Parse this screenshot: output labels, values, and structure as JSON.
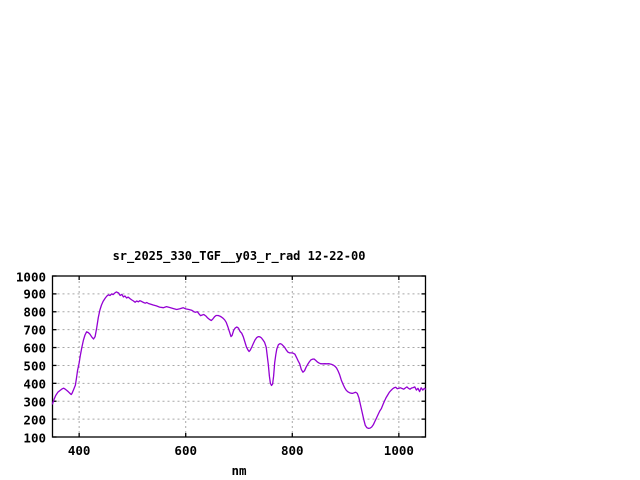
{
  "chart": {
    "title": "sr_2025_330_TGF__y03_r_rad 12-22-00",
    "xlabel": "nm"
  },
  "chart_data": {
    "type": "line",
    "title": "sr_2025_330_TGF__y03_r_rad 12-22-00",
    "xlabel": "nm",
    "ylabel": "",
    "xlim": [
      350,
      1050
    ],
    "ylim": [
      100,
      1000
    ],
    "xticks": [
      400,
      600,
      800,
      1000
    ],
    "yticks": [
      100,
      200,
      300,
      400,
      500,
      600,
      700,
      800,
      900,
      1000
    ],
    "grid": true,
    "legend": "none",
    "line_color": "#9400d3",
    "grid_color": "#a8a8a8",
    "frame_color": "#000000",
    "series": [
      {
        "points": [
          [
            350,
            285
          ],
          [
            353,
            311
          ],
          [
            356,
            332
          ],
          [
            360,
            350
          ],
          [
            364,
            360
          ],
          [
            368,
            369
          ],
          [
            371,
            373
          ],
          [
            374,
            367
          ],
          [
            377,
            360
          ],
          [
            380,
            352
          ],
          [
            383,
            343
          ],
          [
            385,
            337
          ],
          [
            387,
            346
          ],
          [
            390,
            368
          ],
          [
            393,
            390
          ],
          [
            395,
            430
          ],
          [
            397,
            470
          ],
          [
            400,
            512
          ],
          [
            402,
            552
          ],
          [
            405,
            600
          ],
          [
            408,
            641
          ],
          [
            411,
            670
          ],
          [
            414,
            688
          ],
          [
            417,
            684
          ],
          [
            420,
            676
          ],
          [
            424,
            658
          ],
          [
            427,
            648
          ],
          [
            430,
            661
          ],
          [
            433,
            710
          ],
          [
            436,
            768
          ],
          [
            439,
            810
          ],
          [
            442,
            838
          ],
          [
            445,
            858
          ],
          [
            449,
            877
          ],
          [
            452,
            888
          ],
          [
            455,
            895
          ],
          [
            458,
            891
          ],
          [
            461,
            900
          ],
          [
            464,
            896
          ],
          [
            467,
            905
          ],
          [
            470,
            911
          ],
          [
            474,
            905
          ],
          [
            477,
            891
          ],
          [
            480,
            897
          ],
          [
            483,
            883
          ],
          [
            486,
            888
          ],
          [
            489,
            877
          ],
          [
            492,
            882
          ],
          [
            496,
            872
          ],
          [
            499,
            866
          ],
          [
            502,
            860
          ],
          [
            505,
            853
          ],
          [
            508,
            860
          ],
          [
            511,
            856
          ],
          [
            514,
            862
          ],
          [
            517,
            858
          ],
          [
            521,
            852
          ],
          [
            524,
            848
          ],
          [
            527,
            852
          ],
          [
            530,
            846
          ],
          [
            534,
            843
          ],
          [
            539,
            838
          ],
          [
            545,
            833
          ],
          [
            551,
            826
          ],
          [
            558,
            823
          ],
          [
            564,
            829
          ],
          [
            570,
            824
          ],
          [
            577,
            818
          ],
          [
            583,
            813
          ],
          [
            589,
            817
          ],
          [
            595,
            823
          ],
          [
            600,
            816
          ],
          [
            606,
            813
          ],
          [
            611,
            809
          ],
          [
            615,
            801
          ],
          [
            618,
            797
          ],
          [
            622,
            800
          ],
          [
            625,
            788
          ],
          [
            628,
            778
          ],
          [
            631,
            782
          ],
          [
            634,
            785
          ],
          [
            638,
            776
          ],
          [
            641,
            766
          ],
          [
            645,
            756
          ],
          [
            648,
            751
          ],
          [
            651,
            760
          ],
          [
            654,
            772
          ],
          [
            657,
            779
          ],
          [
            661,
            779
          ],
          [
            664,
            776
          ],
          [
            667,
            771
          ],
          [
            670,
            764
          ],
          [
            673,
            755
          ],
          [
            676,
            741
          ],
          [
            679,
            717
          ],
          [
            682,
            689
          ],
          [
            685,
            661
          ],
          [
            687,
            668
          ],
          [
            690,
            697
          ],
          [
            693,
            710
          ],
          [
            696,
            715
          ],
          [
            699,
            708
          ],
          [
            702,
            690
          ],
          [
            705,
            680
          ],
          [
            708,
            660
          ],
          [
            711,
            631
          ],
          [
            714,
            602
          ],
          [
            717,
            585
          ],
          [
            719,
            578
          ],
          [
            721,
            585
          ],
          [
            724,
            603
          ],
          [
            727,
            623
          ],
          [
            730,
            642
          ],
          [
            733,
            655
          ],
          [
            736,
            661
          ],
          [
            739,
            660
          ],
          [
            742,
            654
          ],
          [
            745,
            642
          ],
          [
            748,
            629
          ],
          [
            751,
            602
          ],
          [
            753,
            556
          ],
          [
            755,
            506
          ],
          [
            757,
            440
          ],
          [
            759,
            400
          ],
          [
            761,
            388
          ],
          [
            763,
            396
          ],
          [
            765,
            440
          ],
          [
            767,
            516
          ],
          [
            769,
            560
          ],
          [
            771,
            592
          ],
          [
            774,
            616
          ],
          [
            777,
            622
          ],
          [
            780,
            619
          ],
          [
            783,
            610
          ],
          [
            786,
            600
          ],
          [
            789,
            585
          ],
          [
            792,
            574
          ],
          [
            795,
            570
          ],
          [
            799,
            570
          ],
          [
            802,
            568
          ],
          [
            805,
            563
          ],
          [
            808,
            545
          ],
          [
            811,
            526
          ],
          [
            814,
            509
          ],
          [
            817,
            478
          ],
          [
            820,
            462
          ],
          [
            823,
            470
          ],
          [
            826,
            490
          ],
          [
            829,
            506
          ],
          [
            832,
            520
          ],
          [
            835,
            531
          ],
          [
            838,
            535
          ],
          [
            841,
            536
          ],
          [
            844,
            528
          ],
          [
            847,
            520
          ],
          [
            850,
            514
          ],
          [
            853,
            510
          ],
          [
            857,
            509
          ],
          [
            861,
            510
          ],
          [
            865,
            509
          ],
          [
            869,
            510
          ],
          [
            873,
            507
          ],
          [
            877,
            502
          ],
          [
            880,
            496
          ],
          [
            883,
            486
          ],
          [
            886,
            469
          ],
          [
            889,
            447
          ],
          [
            892,
            418
          ],
          [
            895,
            396
          ],
          [
            898,
            377
          ],
          [
            901,
            362
          ],
          [
            904,
            353
          ],
          [
            907,
            348
          ],
          [
            910,
            345
          ],
          [
            913,
            344
          ],
          [
            916,
            347
          ],
          [
            919,
            350
          ],
          [
            922,
            344
          ],
          [
            925,
            319
          ],
          [
            928,
            279
          ],
          [
            931,
            239
          ],
          [
            934,
            199
          ],
          [
            937,
            165
          ],
          [
            940,
            152
          ],
          [
            943,
            148
          ],
          [
            946,
            150
          ],
          [
            949,
            156
          ],
          [
            952,
            168
          ],
          [
            955,
            187
          ],
          [
            958,
            206
          ],
          [
            961,
            226
          ],
          [
            964,
            245
          ],
          [
            967,
            258
          ],
          [
            970,
            280
          ],
          [
            973,
            301
          ],
          [
            976,
            320
          ],
          [
            979,
            335
          ],
          [
            982,
            350
          ],
          [
            985,
            360
          ],
          [
            988,
            369
          ],
          [
            991,
            375
          ],
          [
            994,
            378
          ],
          [
            997,
            370
          ],
          [
            1000,
            372
          ],
          [
            1003,
            375
          ],
          [
            1006,
            371
          ],
          [
            1009,
            367
          ],
          [
            1012,
            374
          ],
          [
            1015,
            380
          ],
          [
            1018,
            372
          ],
          [
            1021,
            367
          ],
          [
            1024,
            374
          ],
          [
            1027,
            376
          ],
          [
            1030,
            380
          ],
          [
            1033,
            362
          ],
          [
            1036,
            372
          ],
          [
            1039,
            354
          ],
          [
            1042,
            375
          ],
          [
            1045,
            362
          ],
          [
            1048,
            372
          ],
          [
            1050,
            368
          ]
        ]
      }
    ]
  }
}
